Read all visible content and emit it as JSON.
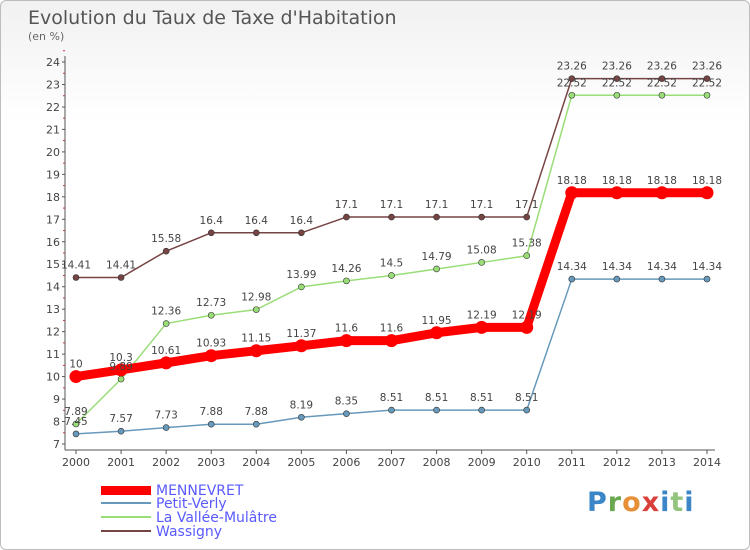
{
  "title": "Evolution du Taux de Taxe d'Habitation",
  "unit": "(en %)",
  "logo": {
    "letters": [
      "P",
      "r",
      "o",
      "x",
      "i",
      "t",
      "i"
    ]
  },
  "chart_data": {
    "type": "line",
    "title": "Evolution du Taux de Taxe d'Habitation",
    "ylabel": "(en %)",
    "x": [
      "2000",
      "2001",
      "2002",
      "2003",
      "2004",
      "2005",
      "2006",
      "2007",
      "2008",
      "2009",
      "2010",
      "2011",
      "2012",
      "2013",
      "2014"
    ],
    "ylim": [
      7,
      24
    ],
    "yticks": [
      "7",
      "8",
      "9",
      "10",
      "11",
      "12",
      "13",
      "14",
      "15",
      "16",
      "17",
      "18",
      "19",
      "20",
      "21",
      "22",
      "23",
      "24"
    ],
    "grid": false,
    "legend_position": "bottom-left",
    "series": [
      {
        "name": "MENNEVRET",
        "color": "#ff0000",
        "values": [
          10,
          10.3,
          10.61,
          10.93,
          11.15,
          11.37,
          11.6,
          11.6,
          11.95,
          12.19,
          12.19,
          18.18,
          18.18,
          18.18,
          18.18
        ],
        "labels": [
          "10",
          "10.3",
          "10.61",
          "10.93",
          "11.15",
          "11.37",
          "11.6",
          "11.6",
          "11.95",
          "12.19",
          "12.19",
          "18.18",
          "18.18",
          "18.18",
          "18.18"
        ]
      },
      {
        "name": "Petit-Verly",
        "color": "#6699bb",
        "values": [
          7.45,
          7.57,
          7.73,
          7.88,
          7.88,
          8.19,
          8.35,
          8.51,
          8.51,
          8.51,
          8.51,
          14.34,
          14.34,
          14.34,
          14.34
        ],
        "labels": [
          "7.45",
          "7.57",
          "7.73",
          "7.88",
          "7.88",
          "8.19",
          "8.35",
          "8.51",
          "8.51",
          "8.51",
          "8.51",
          "14.34",
          "14.34",
          "14.34",
          "14.34"
        ]
      },
      {
        "name": "La Vallée-Mulâtre",
        "color": "#99dd77",
        "values": [
          7.89,
          9.89,
          12.36,
          12.73,
          12.98,
          13.99,
          14.26,
          14.5,
          14.79,
          15.08,
          15.38,
          22.52,
          22.52,
          22.52,
          22.52
        ],
        "labels": [
          "7.89",
          "9.89",
          "12.36",
          "12.73",
          "12.98",
          "13.99",
          "14.26",
          "14.5",
          "14.79",
          "15.08",
          "15.38",
          "22.52",
          "22.52",
          "22.52",
          "22.52"
        ]
      },
      {
        "name": "Wassigny",
        "color": "#774444",
        "values": [
          14.41,
          14.41,
          15.58,
          16.4,
          16.4,
          16.4,
          17.1,
          17.1,
          17.1,
          17.1,
          17.1,
          23.26,
          23.26,
          23.26,
          23.26
        ],
        "labels": [
          "14.41",
          "14.41",
          "15.58",
          "16.4",
          "16.4",
          "16.4",
          "17.1",
          "17.1",
          "17.1",
          "17.1",
          "17.1",
          "23.26",
          "23.26",
          "23.26",
          "23.26"
        ]
      }
    ]
  }
}
